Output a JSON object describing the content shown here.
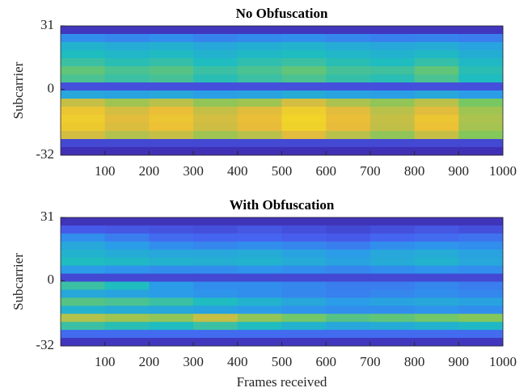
{
  "chart_data": [
    {
      "type": "heatmap",
      "title": "No Obfuscation",
      "ylabel": "Subcarrier",
      "xlim": [
        0,
        1000
      ],
      "xticks": [
        100,
        200,
        300,
        400,
        500,
        600,
        700,
        800,
        900,
        1000
      ],
      "ylim": [
        -32,
        31
      ],
      "yticks": [
        -32,
        0,
        31
      ],
      "colormap": [
        "#3e26a8",
        "#4760f0",
        "#2c99ec",
        "#1fbcc0",
        "#7bc85e",
        "#eabb3a",
        "#f9fb0e"
      ],
      "z": [
        [
          0.05,
          0.05,
          0.05,
          0.05,
          0.05,
          0.05,
          0.05,
          0.05,
          0.05,
          0.05
        ],
        [
          0.3,
          0.28,
          0.3,
          0.27,
          0.29,
          0.3,
          0.28,
          0.26,
          0.27,
          0.25
        ],
        [
          0.45,
          0.42,
          0.44,
          0.4,
          0.43,
          0.45,
          0.42,
          0.4,
          0.42,
          0.38
        ],
        [
          0.5,
          0.47,
          0.49,
          0.45,
          0.48,
          0.5,
          0.47,
          0.45,
          0.48,
          0.43
        ],
        [
          0.55,
          0.52,
          0.54,
          0.5,
          0.53,
          0.55,
          0.52,
          0.5,
          0.54,
          0.48
        ],
        [
          0.62,
          0.58,
          0.6,
          0.55,
          0.58,
          0.62,
          0.57,
          0.56,
          0.62,
          0.52
        ],
        [
          0.58,
          0.55,
          0.57,
          0.52,
          0.55,
          0.58,
          0.54,
          0.52,
          0.58,
          0.5
        ],
        [
          0.12,
          0.12,
          0.12,
          0.12,
          0.12,
          0.12,
          0.12,
          0.12,
          0.12,
          0.12
        ],
        [
          0.4,
          0.38,
          0.4,
          0.36,
          0.38,
          0.42,
          0.38,
          0.36,
          0.4,
          0.35
        ],
        [
          0.78,
          0.72,
          0.76,
          0.7,
          0.72,
          0.8,
          0.74,
          0.7,
          0.76,
          0.66
        ],
        [
          0.86,
          0.8,
          0.84,
          0.78,
          0.82,
          0.88,
          0.82,
          0.76,
          0.82,
          0.72
        ],
        [
          0.88,
          0.82,
          0.86,
          0.8,
          0.84,
          0.9,
          0.84,
          0.78,
          0.86,
          0.74
        ],
        [
          0.87,
          0.81,
          0.85,
          0.79,
          0.83,
          0.89,
          0.83,
          0.77,
          0.85,
          0.73
        ],
        [
          0.8,
          0.75,
          0.78,
          0.72,
          0.76,
          0.82,
          0.76,
          0.7,
          0.78,
          0.68
        ],
        [
          0.1,
          0.1,
          0.1,
          0.1,
          0.1,
          0.1,
          0.1,
          0.1,
          0.1,
          0.1
        ],
        [
          0.03,
          0.03,
          0.03,
          0.03,
          0.03,
          0.03,
          0.03,
          0.03,
          0.03,
          0.03
        ]
      ]
    },
    {
      "type": "heatmap",
      "title": "With Obfuscation",
      "ylabel": "Subcarrier",
      "xlabel": "Frames received",
      "xlim": [
        0,
        1000
      ],
      "xticks": [
        100,
        200,
        300,
        400,
        500,
        600,
        700,
        800,
        900,
        1000
      ],
      "ylim": [
        -32,
        31
      ],
      "yticks": [
        -32,
        0,
        31
      ],
      "colormap": [
        "#3e26a8",
        "#4760f0",
        "#2c99ec",
        "#1fbcc0",
        "#7bc85e",
        "#eabb3a",
        "#f9fb0e"
      ],
      "z": [
        [
          0.04,
          0.04,
          0.04,
          0.04,
          0.04,
          0.04,
          0.04,
          0.04,
          0.04,
          0.04
        ],
        [
          0.15,
          0.14,
          0.13,
          0.12,
          0.14,
          0.12,
          0.1,
          0.12,
          0.14,
          0.12
        ],
        [
          0.3,
          0.25,
          0.2,
          0.18,
          0.18,
          0.16,
          0.15,
          0.18,
          0.2,
          0.22
        ],
        [
          0.4,
          0.35,
          0.3,
          0.28,
          0.3,
          0.28,
          0.25,
          0.3,
          0.32,
          0.3
        ],
        [
          0.45,
          0.42,
          0.4,
          0.4,
          0.42,
          0.38,
          0.35,
          0.4,
          0.42,
          0.38
        ],
        [
          0.5,
          0.48,
          0.45,
          0.44,
          0.45,
          0.42,
          0.38,
          0.42,
          0.45,
          0.4
        ],
        [
          0.35,
          0.32,
          0.3,
          0.3,
          0.32,
          0.3,
          0.28,
          0.3,
          0.32,
          0.3
        ],
        [
          0.1,
          0.1,
          0.1,
          0.1,
          0.1,
          0.1,
          0.1,
          0.1,
          0.1,
          0.1
        ],
        [
          0.55,
          0.5,
          0.35,
          0.3,
          0.3,
          0.28,
          0.25,
          0.25,
          0.28,
          0.25
        ],
        [
          0.4,
          0.38,
          0.35,
          0.32,
          0.3,
          0.28,
          0.26,
          0.28,
          0.3,
          0.28
        ],
        [
          0.6,
          0.58,
          0.55,
          0.5,
          0.45,
          0.4,
          0.35,
          0.38,
          0.4,
          0.38
        ],
        [
          0.45,
          0.42,
          0.4,
          0.38,
          0.35,
          0.32,
          0.3,
          0.3,
          0.32,
          0.3
        ],
        [
          0.75,
          0.72,
          0.7,
          0.78,
          0.7,
          0.65,
          0.6,
          0.62,
          0.65,
          0.68
        ],
        [
          0.55,
          0.52,
          0.5,
          0.55,
          0.5,
          0.45,
          0.4,
          0.42,
          0.45,
          0.48
        ],
        [
          0.2,
          0.2,
          0.2,
          0.2,
          0.2,
          0.2,
          0.2,
          0.2,
          0.2,
          0.2
        ],
        [
          0.05,
          0.05,
          0.05,
          0.05,
          0.05,
          0.05,
          0.05,
          0.05,
          0.05,
          0.05
        ]
      ]
    }
  ]
}
